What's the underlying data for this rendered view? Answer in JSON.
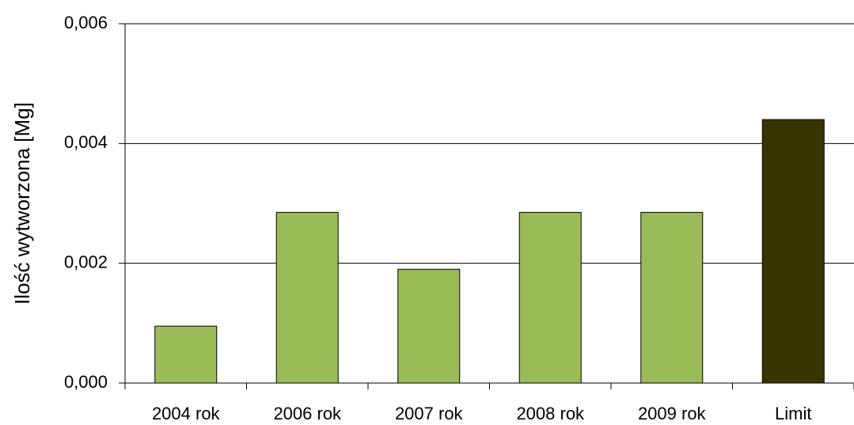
{
  "chart_data": {
    "type": "bar",
    "y_label": "Ilość wytworzona [Mg]",
    "categories": [
      "2004 rok",
      "2006 rok",
      "2007 rok",
      "2008 rok",
      "2009 rok",
      "Limit"
    ],
    "values": [
      0.00095,
      0.00285,
      0.0019,
      0.00285,
      0.00285,
      0.0044
    ],
    "colors": [
      "#9bbb59",
      "#9bbb59",
      "#9bbb59",
      "#9bbb59",
      "#9bbb59",
      "#373501"
    ],
    "ylim": [
      0,
      0.006
    ],
    "yticks": [
      {
        "value": 0,
        "label": "0,000"
      },
      {
        "value": 0.002,
        "label": "0,002"
      },
      {
        "value": 0.004,
        "label": "0,004"
      },
      {
        "value": 0.006,
        "label": "0,006"
      }
    ],
    "grid": true
  }
}
